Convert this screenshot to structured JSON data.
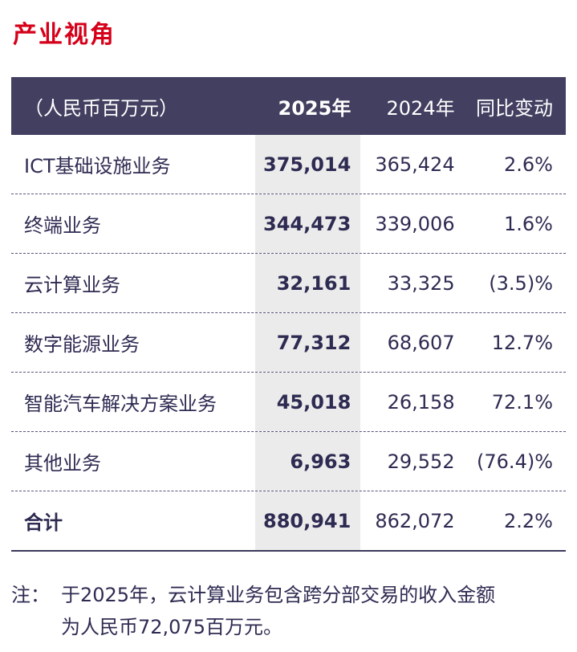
{
  "title": "产业视角",
  "colors": {
    "title_red": "#d50019",
    "header_bg": "#423f60",
    "highlight_bg": "#ebebeb",
    "text_navy": "#2e2b52"
  },
  "table": {
    "header": {
      "unit_label": "（人民币百万元）",
      "col_2025": "2025年",
      "col_2024": "2024年",
      "col_change": "同比变动"
    },
    "rows": [
      {
        "label": "ICT基础设施业务",
        "v2025": "375,014",
        "v2024": "365,424",
        "change": "2.6%"
      },
      {
        "label": "终端业务",
        "v2025": "344,473",
        "v2024": "339,006",
        "change": "1.6%"
      },
      {
        "label": "云计算业务",
        "v2025": "32,161",
        "v2024": "33,325",
        "change": "(3.5)%"
      },
      {
        "label": "数字能源业务",
        "v2025": "77,312",
        "v2024": "68,607",
        "change": "12.7%"
      },
      {
        "label": "智能汽车解决方案业务",
        "v2025": "45,018",
        "v2024": "26,158",
        "change": "72.1%"
      },
      {
        "label": "其他业务",
        "v2025": "6,963",
        "v2024": "29,552",
        "change": "(76.4)%"
      }
    ],
    "total": {
      "label": "合计",
      "v2025": "880,941",
      "v2024": "862,072",
      "change": "2.2%"
    }
  },
  "note": {
    "prefix": "注：",
    "line1": "于2025年，云计算业务包含跨分部交易的收入金额",
    "line2": "为人民币72,075百万元。"
  }
}
